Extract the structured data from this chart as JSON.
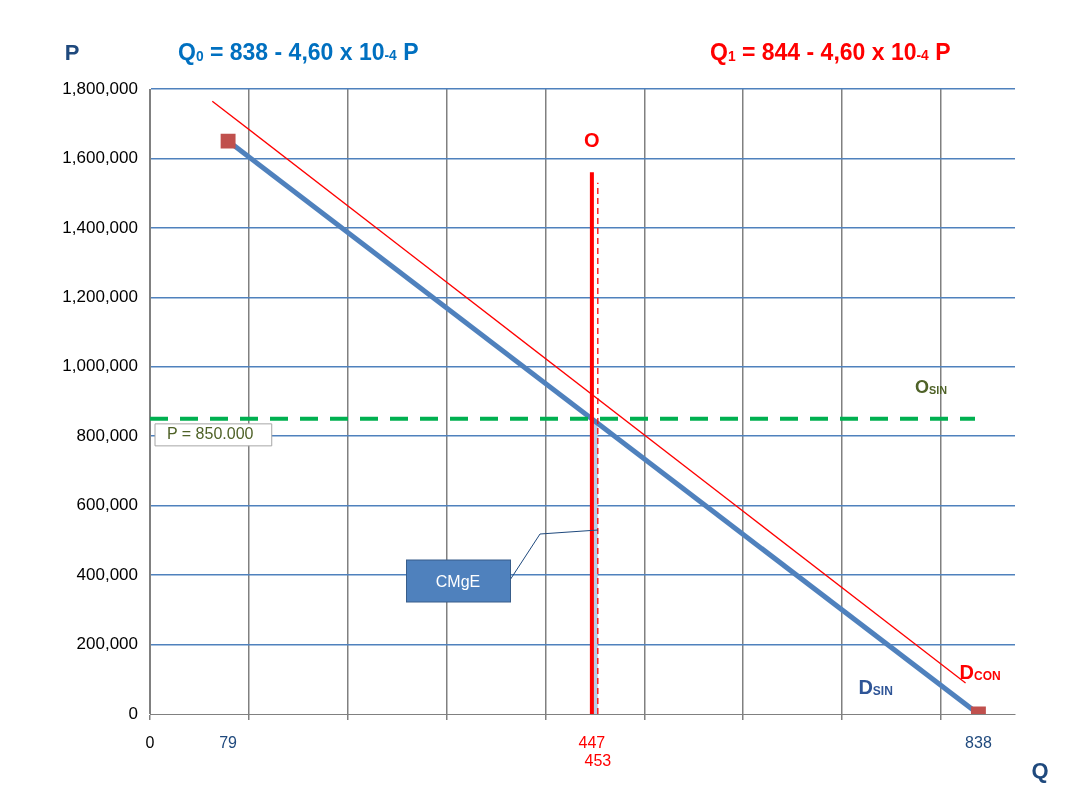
{
  "chart_data": {
    "type": "line",
    "xlabel": "Q",
    "ylabel": "P",
    "xlim": [
      0,
      875
    ],
    "xticks": [
      0,
      79,
      {
        "value": 100,
        "label": null
      },
      {
        "value": 200,
        "label": null
      },
      {
        "value": 300,
        "label": null
      },
      {
        "value": 400,
        "label": null
      },
      447,
      {
        "value": 500,
        "label": null
      },
      {
        "value": 600,
        "label": null
      },
      {
        "value": 700,
        "label": null
      },
      {
        "value": 800,
        "label": null
      },
      838
    ],
    "ylim": [
      0,
      1800000
    ],
    "yticks": [
      0,
      {
        "value": 200000,
        "label": "200,000"
      },
      {
        "value": 400000,
        "label": "400,000"
      },
      {
        "value": 600000,
        "label": "600,000"
      },
      {
        "value": 800000,
        "label": "800,000"
      },
      {
        "value": 1000000,
        "label": "1,000,000"
      },
      {
        "value": 1200000,
        "label": "1,200,000"
      },
      {
        "value": 1400000,
        "label": "1,400,000"
      },
      {
        "value": 1600000,
        "label": "1,600,000"
      },
      {
        "value": 1800000,
        "label": "1,800,000"
      }
    ],
    "grid": true,
    "legend": false,
    "series": [
      {
        "name": "D$_{SIN}$",
        "color": "#4f81bd",
        "x": [
          79,
          838
        ],
        "values": [
          1650000,
          0
        ],
        "marker": "square"
      },
      {
        "name": "D$_{CON}$",
        "color": "#ff0000",
        "x": [
          63,
          825
        ],
        "values": [
          1765000,
          89000
        ],
        "marker": "none"
      },
      {
        "name": "O",
        "color": "#ff0000",
        "x": [
          447,
          447
        ],
        "values": [
          0,
          1560000
        ],
        "marker": "none"
      },
      {
        "color": "#ff0000",
        "x": [
          453,
          453
        ],
        "values": [
          0,
          1530000
        ],
        "marker": "none",
        "line_style": "dashed"
      },
      {
        "type": "area",
        "color": "#b9cde5",
        "x": [
          447,
          453
        ],
        "values": [
          840000,
          840000
        ],
        "marker": "none"
      }
    ],
    "ref_lines": [
      {
        "axis": "y",
        "value": 850000,
        "label": "O$_{SIN}$",
        "color": "#00b050",
        "line_style": "dashed"
      }
    ],
    "annotations": [
      "Q$_{0}$ = 838 - 4,60 x 10$^{-4}$ P",
      "Q$_{1}$ = 844 - 4,60 x 10$^{-4}$ P",
      {
        "text": "P = 850.000",
        "x": 0,
        "y": 850000
      },
      "CMgE",
      {
        "text": "453",
        "x": 453,
        "y": 0
      }
    ]
  }
}
